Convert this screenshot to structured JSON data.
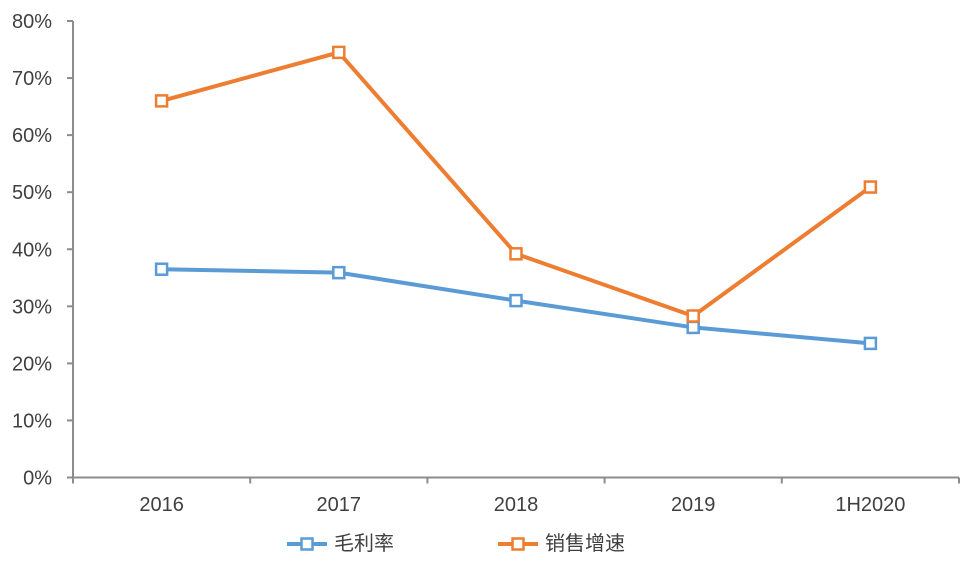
{
  "chart_data": {
    "type": "line",
    "title": "",
    "xlabel": "",
    "ylabel": "",
    "categories": [
      "2016",
      "2017",
      "2018",
      "2019",
      "1H2020"
    ],
    "series": [
      {
        "name": "毛利率",
        "color": "#5B9BD5",
        "marker": "hollow-square",
        "values": [
          36.5,
          35.9,
          31.0,
          26.3,
          23.5
        ]
      },
      {
        "name": "销售增速",
        "color": "#ED7D31",
        "marker": "hollow-square",
        "values": [
          66.0,
          74.5,
          39.2,
          28.3,
          50.9
        ]
      }
    ],
    "ylim": [
      0,
      80
    ],
    "yticks": [
      "0%",
      "10%",
      "20%",
      "30%",
      "40%",
      "50%",
      "60%",
      "70%",
      "80%"
    ],
    "grid": false,
    "legend_position": "bottom",
    "axis_color": "#8C8C8C",
    "text_color": "#404040",
    "plot_background": "#FFFFFF"
  }
}
